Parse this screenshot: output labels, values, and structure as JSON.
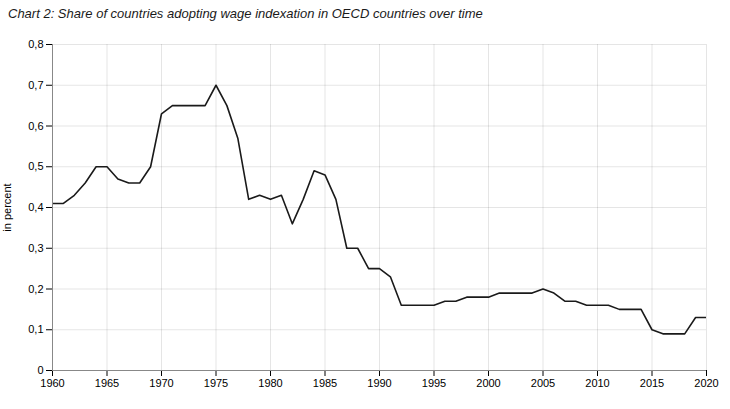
{
  "chart_data": {
    "type": "line",
    "title": "Chart 2: Share of countries adopting wage indexation in OECD countries over time",
    "ylabel": "in percent",
    "x": [
      1960,
      1961,
      1962,
      1963,
      1964,
      1965,
      1966,
      1967,
      1968,
      1969,
      1970,
      1971,
      1972,
      1973,
      1974,
      1975,
      1976,
      1977,
      1978,
      1979,
      1980,
      1981,
      1982,
      1983,
      1984,
      1985,
      1986,
      1987,
      1988,
      1989,
      1990,
      1991,
      1992,
      1993,
      1994,
      1995,
      1996,
      1997,
      1998,
      1999,
      2000,
      2001,
      2002,
      2003,
      2004,
      2005,
      2006,
      2007,
      2008,
      2009,
      2010,
      2011,
      2012,
      2013,
      2014,
      2015,
      2016,
      2017,
      2018,
      2019,
      2020
    ],
    "values": [
      0.41,
      0.41,
      0.43,
      0.46,
      0.5,
      0.5,
      0.47,
      0.46,
      0.46,
      0.5,
      0.63,
      0.65,
      0.65,
      0.65,
      0.65,
      0.7,
      0.65,
      0.57,
      0.42,
      0.43,
      0.42,
      0.43,
      0.36,
      0.42,
      0.49,
      0.48,
      0.42,
      0.3,
      0.3,
      0.25,
      0.25,
      0.23,
      0.16,
      0.16,
      0.16,
      0.16,
      0.17,
      0.17,
      0.18,
      0.18,
      0.18,
      0.19,
      0.19,
      0.19,
      0.19,
      0.2,
      0.19,
      0.17,
      0.17,
      0.16,
      0.16,
      0.16,
      0.15,
      0.15,
      0.15,
      0.1,
      0.09,
      0.09,
      0.09,
      0.13,
      0.13
    ],
    "color": "#1a1a1a",
    "xlim": [
      1960,
      2020
    ],
    "ylim": [
      0,
      0.8
    ],
    "xticks": [
      1960,
      1965,
      1970,
      1975,
      1980,
      1985,
      1990,
      1995,
      2000,
      2005,
      2010,
      2015,
      2020
    ],
    "yticks": [
      0,
      {
        "value": 0.1,
        "label": "0,1"
      },
      {
        "value": 0.2,
        "label": "0,2"
      },
      {
        "value": 0.3,
        "label": "0,3"
      },
      {
        "value": 0.4,
        "label": "0,4"
      },
      {
        "value": 0.5,
        "label": "0,5"
      },
      {
        "value": 0.6,
        "label": "0,6"
      },
      {
        "value": 0.7,
        "label": "0,7"
      },
      {
        "value": 0.8,
        "label": "0,8"
      }
    ],
    "grid": true
  }
}
